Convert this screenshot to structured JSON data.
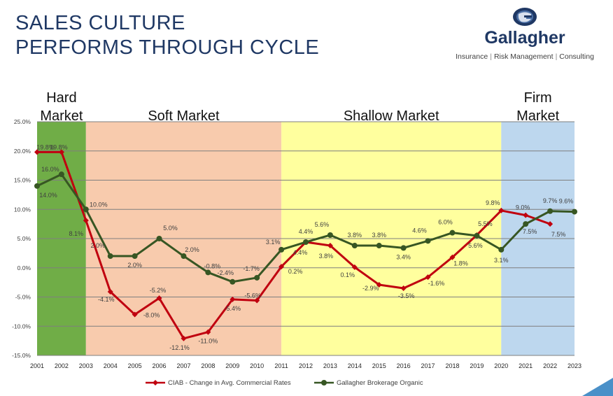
{
  "header": {
    "title_line1": "SALES CULTURE",
    "title_line2": "PERFORMS THROUGH CYCLE"
  },
  "logo": {
    "name": "Gallagher",
    "tagline": [
      "Insurance",
      "Risk Management",
      "Consulting"
    ],
    "icon": "globe-icon"
  },
  "chart_data": {
    "type": "line",
    "x": [
      "2001",
      "2002",
      "2003",
      "2004",
      "2005",
      "2006",
      "2007",
      "2008",
      "2009",
      "2010",
      "2011",
      "2012",
      "2013",
      "2014",
      "2015",
      "2016",
      "2017",
      "2018",
      "2019",
      "2020",
      "2021",
      "2022",
      "2023"
    ],
    "ylim": [
      -15,
      25
    ],
    "yticks": [
      "-15.0%",
      "-10.0%",
      "-5.0%",
      "0.0%",
      "5.0%",
      "10.0%",
      "15.0%",
      "20.0%",
      "25.0%"
    ],
    "grid": true,
    "legend_position": "bottom",
    "series": [
      {
        "name": "CIAB - Change in Avg. Commercial Rates",
        "color": "#c0000f",
        "values": [
          19.8,
          19.8,
          8.1,
          -4.1,
          -8.0,
          -5.2,
          -12.1,
          -11.0,
          -5.4,
          -5.6,
          0.2,
          4.4,
          3.8,
          0.1,
          -2.9,
          -3.5,
          -1.6,
          1.8,
          5.6,
          9.8,
          9.0,
          7.5,
          null
        ],
        "labels": [
          "19.8%",
          "19.8%",
          "8.1%",
          "-4.1%",
          "-8.0%",
          "-5.2%",
          "-12.1%",
          "-11.0%",
          "-5.4%",
          "-5.6%",
          "0.2%",
          "4.4%",
          "3.8%",
          "0.1%",
          "-2.9%",
          "-3.5%",
          "-1.6%",
          "1.8%",
          "5.6%",
          "9.8%",
          "9.0%",
          "7.5%",
          ""
        ]
      },
      {
        "name": "Gallagher Brokerage Organic",
        "color": "#375623",
        "values": [
          14.0,
          16.0,
          10.0,
          2.0,
          2.0,
          5.0,
          2.0,
          -0.8,
          -2.4,
          -1.7,
          3.1,
          4.4,
          5.6,
          3.8,
          3.8,
          3.4,
          4.6,
          6.0,
          5.5,
          3.1,
          7.5,
          9.7,
          9.6
        ],
        "labels": [
          "14.0%",
          "16.0%",
          "10.0%",
          "2.0%",
          "2.0%",
          "5.0%",
          "2.0%",
          "-0.8%",
          "-2.4%",
          "-1.7%",
          "3.1%",
          "4.4%",
          "5.6%",
          "3.8%",
          "3.8%",
          "3.4%",
          "4.6%",
          "6.0%",
          "5.5%",
          "3.1%",
          "7.5%",
          "9.7%",
          "9.6%"
        ]
      }
    ],
    "regions": [
      {
        "label_line1": "Hard",
        "label_line2": "Market",
        "from": "2001",
        "to": "2003",
        "color": "#70ad47"
      },
      {
        "label_line1": "",
        "label_line2": "Soft Market",
        "from": "2003",
        "to": "2011",
        "color": "#f8cbad"
      },
      {
        "label_line1": "",
        "label_line2": "Shallow Market",
        "from": "2011",
        "to": "2020",
        "color": "#ffff9e"
      },
      {
        "label_line1": "Firm",
        "label_line2": "Market",
        "from": "2020",
        "to": "2023",
        "color": "#bdd7ee"
      }
    ]
  }
}
